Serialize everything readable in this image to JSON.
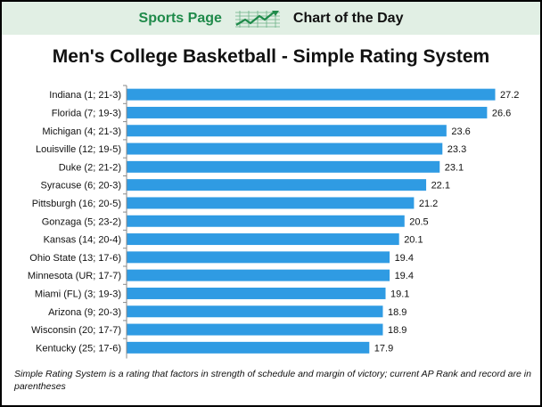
{
  "header": {
    "brand": "Sports Page",
    "tagline": "Chart of the Day",
    "bg_color": "#e1efe4",
    "brand_color": "#1f8a4a",
    "logo_icon": "trend-up-chart-icon"
  },
  "chart_data": {
    "type": "bar",
    "orientation": "horizontal",
    "title": "Men's College Basketball - Simple Rating System",
    "categories": [
      "Indiana (1; 21-3)",
      "Florida (7; 19-3)",
      "Michigan (4; 21-3)",
      "Louisville (12; 19-5)",
      "Duke (2; 21-2)",
      "Syracuse (6; 20-3)",
      "Pittsburgh (16; 20-5)",
      "Gonzaga (5; 23-2)",
      "Kansas (14; 20-4)",
      "Ohio State (13; 17-6)",
      "Minnesota (UR; 17-7)",
      "Miami (FL) (3; 19-3)",
      "Arizona (9; 20-3)",
      "Wisconsin (20; 17-7)",
      "Kentucky (25; 17-6)"
    ],
    "values": [
      27.2,
      26.6,
      23.6,
      23.3,
      23.1,
      22.1,
      21.2,
      20.5,
      20.1,
      19.4,
      19.4,
      19.1,
      18.9,
      18.9,
      17.9
    ],
    "value_labels": [
      "27.2",
      "26.6",
      "23.6",
      "23.3",
      "23.1",
      "22.1",
      "21.2",
      "20.5",
      "20.1",
      "19.4",
      "19.4",
      "19.1",
      "18.9",
      "18.9",
      "17.9"
    ],
    "xlim": [
      0,
      27.2
    ],
    "bar_color": "#2f9be3",
    "grid": false,
    "legend": "none"
  },
  "footnote": "Simple Rating System is a rating that factors in strength of schedule and margin of victory;  current AP Rank and record are in parentheses"
}
